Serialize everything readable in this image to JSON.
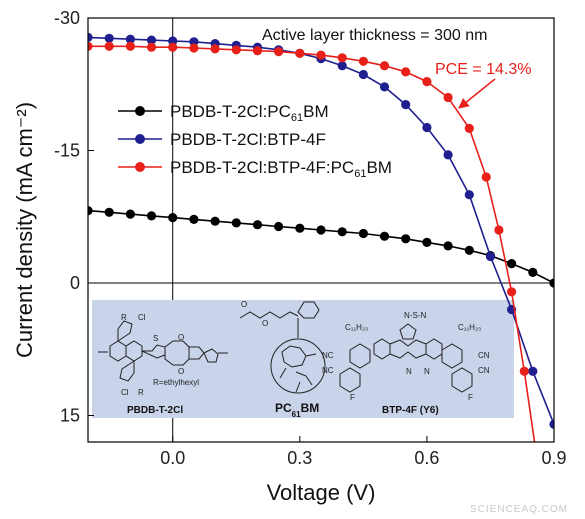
{
  "chart_data": {
    "type": "line",
    "xlabel": "Voltage (V)",
    "ylabel": "Current density (mA cm⁻²)",
    "xlim": [
      -0.2,
      0.9
    ],
    "ylim": [
      -30,
      18
    ],
    "y_inverted": true,
    "x_ticks": [
      0.0,
      0.3,
      0.6,
      0.9
    ],
    "x_tick_labels": [
      "0.0",
      "0.3",
      "0.6",
      "0.9"
    ],
    "y_ticks": [
      -30,
      -15,
      0,
      15
    ],
    "y_tick_labels": [
      "-30",
      "-15",
      "0",
      "15"
    ],
    "grid": false,
    "legend_position": "upper-left",
    "series": [
      {
        "name": "PBDB-T-2Cl:PC61BM",
        "name_base": "PBDB-T-2Cl:PC",
        "name_sub": "61",
        "name_suffix": "BM",
        "color": "#000000",
        "x": [
          -0.2,
          -0.15,
          -0.1,
          -0.05,
          0.0,
          0.05,
          0.1,
          0.15,
          0.2,
          0.25,
          0.3,
          0.35,
          0.4,
          0.45,
          0.5,
          0.55,
          0.6,
          0.65,
          0.7,
          0.75,
          0.8,
          0.85,
          0.9
        ],
        "y": [
          -8.2,
          -8.0,
          -7.8,
          -7.6,
          -7.4,
          -7.2,
          -7.0,
          -6.8,
          -6.6,
          -6.4,
          -6.2,
          -6.0,
          -5.8,
          -5.6,
          -5.3,
          -5.0,
          -4.6,
          -4.2,
          -3.7,
          -3.1,
          -2.2,
          -1.2,
          0.0
        ]
      },
      {
        "name": "PBDB-T-2Cl:BTP-4F",
        "name_base": "PBDB-T-2Cl:BTP-4F",
        "name_sub": "",
        "name_suffix": "",
        "color": "#1f1f8f",
        "x": [
          -0.2,
          -0.15,
          -0.1,
          -0.05,
          0.0,
          0.05,
          0.1,
          0.15,
          0.2,
          0.25,
          0.3,
          0.35,
          0.4,
          0.45,
          0.5,
          0.55,
          0.6,
          0.65,
          0.7,
          0.75,
          0.8,
          0.85,
          0.9
        ],
        "y": [
          -27.8,
          -27.7,
          -27.6,
          -27.5,
          -27.4,
          -27.3,
          -27.1,
          -26.9,
          -26.7,
          -26.4,
          -26.0,
          -25.4,
          -24.6,
          -23.6,
          -22.2,
          -20.2,
          -17.6,
          -14.5,
          -10.0,
          -3.0,
          3.0,
          10.0,
          16.0
        ]
      },
      {
        "name": "PBDB-T-2Cl:BTP-4F:PC61BM",
        "name_base": "PBDB-T-2Cl:BTP-4F:PC",
        "name_sub": "61",
        "name_suffix": "BM",
        "color": "#e8201a",
        "x": [
          -0.2,
          -0.15,
          -0.1,
          -0.05,
          0.0,
          0.05,
          0.1,
          0.15,
          0.2,
          0.25,
          0.3,
          0.35,
          0.4,
          0.45,
          0.5,
          0.55,
          0.6,
          0.65,
          0.7,
          0.74,
          0.77,
          0.8,
          0.83,
          0.86
        ],
        "y": [
          -26.8,
          -26.8,
          -26.8,
          -26.7,
          -26.7,
          -26.6,
          -26.5,
          -26.4,
          -26.3,
          -26.2,
          -26.0,
          -25.8,
          -25.5,
          -25.1,
          -24.6,
          -23.9,
          -22.8,
          -21.0,
          -17.5,
          -12.0,
          -6.0,
          1.0,
          10.0,
          20.0
        ]
      }
    ],
    "annotations": {
      "thickness": "Active layer thickness = 300 nm",
      "pce": "PCE = 14.3%"
    },
    "structures": {
      "donor": "PBDB-T-2Cl",
      "donor_r": "R=ethylhexyl",
      "fullerene_base": "PC",
      "fullerene_sub": "61",
      "fullerene_suffix": "BM",
      "acceptor": "BTP-4F (Y6)",
      "c11": "C₁₁H₂₃"
    },
    "watermark": "SCIENCEAQ.COM"
  }
}
